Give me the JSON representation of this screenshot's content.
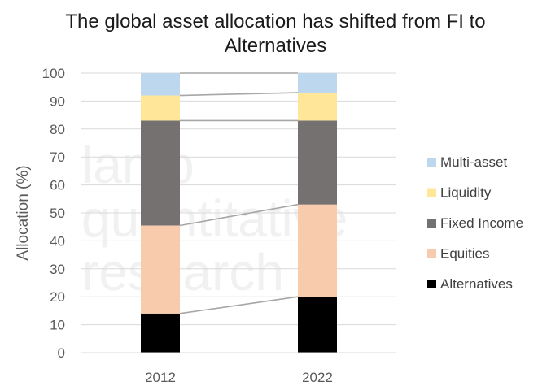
{
  "chart_data": {
    "type": "bar",
    "stacked": true,
    "title": [
      "The global asset allocation has shifted from FI to",
      "Alternatives"
    ],
    "ylabel": "Allocation (%)",
    "xlabel": "",
    "categories": [
      "2012",
      "2022"
    ],
    "ylim": [
      0,
      100
    ],
    "yticks": [
      0,
      10,
      20,
      30,
      40,
      50,
      60,
      70,
      80,
      90,
      100
    ],
    "grid": true,
    "legend_position": "right",
    "connector_lines": true,
    "series": [
      {
        "name": "Alternatives",
        "color": "#000000",
        "values": [
          14,
          20
        ]
      },
      {
        "name": "Equities",
        "color": "#f8cbad",
        "values": [
          31.5,
          33
        ]
      },
      {
        "name": "Fixed Income",
        "color": "#767171",
        "values": [
          37.5,
          30
        ]
      },
      {
        "name": "Liquidity",
        "color": "#ffe699",
        "values": [
          9,
          10
        ]
      },
      {
        "name": "Multi-asset",
        "color": "#bdd7ee",
        "values": [
          8,
          7
        ]
      }
    ],
    "watermark": [
      "lamb",
      "quantitative",
      "research"
    ]
  }
}
